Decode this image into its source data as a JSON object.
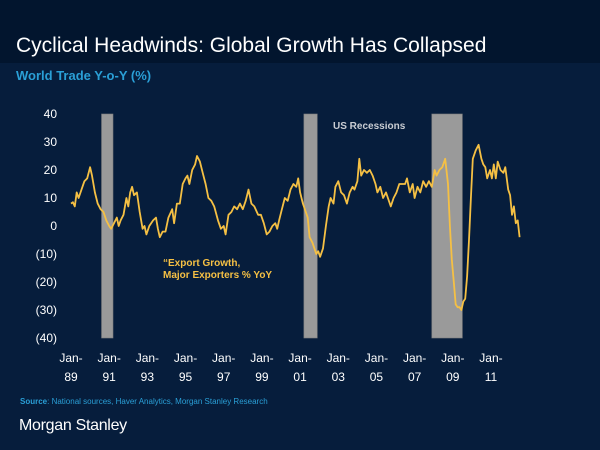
{
  "header": {
    "title": "Cyclical Headwinds: Global Growth Has Collapsed",
    "subtitle": "World Trade Y-o-Y (%)"
  },
  "footer": {
    "source_label": "Source",
    "source_text": ": National sources, Haver Analytics, Morgan Stanley Research",
    "logo": "Morgan Stanley"
  },
  "colors": {
    "background": "#061d3c",
    "header_band": "#02152e",
    "accent_blue": "#2a9fd6",
    "series_line": "#f5c044",
    "recession_bar": "#9a9a9a"
  },
  "chart_data": {
    "type": "line",
    "title": "World Trade Y-o-Y (%)",
    "xlabel": "",
    "ylabel": "",
    "xlim": [
      1988.6,
      2012.5
    ],
    "ylim": [
      -40,
      40
    ],
    "grid": false,
    "y_ticks": [
      40,
      30,
      20,
      10,
      0,
      -10,
      -20,
      -30,
      -40
    ],
    "y_tick_labels": [
      "40",
      "30",
      "20",
      "10",
      "0",
      "(10)",
      "(20)",
      "(30)",
      "(40)"
    ],
    "x_ticks": [
      1989,
      1991,
      1993,
      1995,
      1997,
      1999,
      2001,
      2003,
      2005,
      2007,
      2009,
      2011
    ],
    "x_tick_labels": [
      [
        "Jan-",
        "89"
      ],
      [
        "Jan-",
        "91"
      ],
      [
        "Jan-",
        "93"
      ],
      [
        "Jan-",
        "95"
      ],
      [
        "Jan-",
        "97"
      ],
      [
        "Jan-",
        "99"
      ],
      [
        "Jan-",
        "01"
      ],
      [
        "Jan-",
        "03"
      ],
      [
        "Jan-",
        "05"
      ],
      [
        "Jan-",
        "07"
      ],
      [
        "Jan-",
        "09"
      ],
      [
        "Jan-",
        "11"
      ]
    ],
    "annotations": {
      "recessions_label": "US Recessions",
      "series_label_line1": "“Export Growth,",
      "series_label_line2": "Major Exporters % YoY"
    },
    "recessions": [
      {
        "start": 1990.6,
        "end": 1991.2
      },
      {
        "start": 2001.2,
        "end": 2001.9
      },
      {
        "start": 2007.9,
        "end": 2009.5
      }
    ],
    "series": [
      {
        "name": "Export Growth, Major Exporters % YoY",
        "points": [
          [
            1989.0,
            8
          ],
          [
            1989.1,
            8.5
          ],
          [
            1989.2,
            7
          ],
          [
            1989.3,
            12
          ],
          [
            1989.4,
            10
          ],
          [
            1989.55,
            13
          ],
          [
            1989.7,
            16
          ],
          [
            1989.85,
            17
          ],
          [
            1990.0,
            21
          ],
          [
            1990.1,
            18
          ],
          [
            1990.25,
            12
          ],
          [
            1990.4,
            8
          ],
          [
            1990.55,
            6
          ],
          [
            1990.7,
            5
          ],
          [
            1990.85,
            2
          ],
          [
            1991.0,
            0
          ],
          [
            1991.1,
            -1
          ],
          [
            1991.25,
            1
          ],
          [
            1991.4,
            3
          ],
          [
            1991.5,
            0
          ],
          [
            1991.6,
            2
          ],
          [
            1991.75,
            4
          ],
          [
            1991.9,
            10
          ],
          [
            1992.0,
            7
          ],
          [
            1992.1,
            12
          ],
          [
            1992.2,
            14
          ],
          [
            1992.3,
            11
          ],
          [
            1992.45,
            12
          ],
          [
            1992.6,
            5
          ],
          [
            1992.75,
            -1
          ],
          [
            1992.85,
            0
          ],
          [
            1992.95,
            -3
          ],
          [
            1993.1,
            0
          ],
          [
            1993.3,
            2
          ],
          [
            1993.45,
            3
          ],
          [
            1993.55,
            -1
          ],
          [
            1993.65,
            -4
          ],
          [
            1993.8,
            -2
          ],
          [
            1993.95,
            -2
          ],
          [
            1994.1,
            3
          ],
          [
            1994.3,
            6
          ],
          [
            1994.4,
            1
          ],
          [
            1994.55,
            8
          ],
          [
            1994.7,
            8
          ],
          [
            1994.85,
            15
          ],
          [
            1995.0,
            17
          ],
          [
            1995.1,
            18
          ],
          [
            1995.2,
            15
          ],
          [
            1995.35,
            20
          ],
          [
            1995.5,
            22
          ],
          [
            1995.6,
            25
          ],
          [
            1995.75,
            23
          ],
          [
            1995.9,
            19
          ],
          [
            1996.05,
            15
          ],
          [
            1996.2,
            10
          ],
          [
            1996.35,
            9
          ],
          [
            1996.5,
            7
          ],
          [
            1996.7,
            2
          ],
          [
            1996.85,
            -1
          ],
          [
            1997.0,
            0
          ],
          [
            1997.1,
            -3
          ],
          [
            1997.25,
            4
          ],
          [
            1997.4,
            5
          ],
          [
            1997.55,
            7
          ],
          [
            1997.7,
            6
          ],
          [
            1997.85,
            8
          ],
          [
            1998.0,
            6
          ],
          [
            1998.15,
            9
          ],
          [
            1998.3,
            13
          ],
          [
            1998.45,
            8
          ],
          [
            1998.6,
            7
          ],
          [
            1998.8,
            4
          ],
          [
            1998.95,
            4
          ],
          [
            1999.1,
            1
          ],
          [
            1999.25,
            -3
          ],
          [
            1999.4,
            -2
          ],
          [
            1999.55,
            0
          ],
          [
            1999.7,
            1
          ],
          [
            1999.8,
            -1
          ],
          [
            1999.9,
            2
          ],
          [
            2000.05,
            6
          ],
          [
            2000.2,
            10
          ],
          [
            2000.35,
            9
          ],
          [
            2000.5,
            13
          ],
          [
            2000.65,
            15
          ],
          [
            2000.8,
            14
          ],
          [
            2000.9,
            17
          ],
          [
            2001.0,
            12
          ],
          [
            2001.15,
            8
          ],
          [
            2001.3,
            5
          ],
          [
            2001.4,
            3
          ],
          [
            2001.5,
            -4
          ],
          [
            2001.65,
            -6
          ],
          [
            2001.75,
            -8
          ],
          [
            2001.85,
            -10
          ],
          [
            2001.95,
            -9
          ],
          [
            2002.05,
            -11
          ],
          [
            2002.2,
            -8
          ],
          [
            2002.35,
            0
          ],
          [
            2002.5,
            7
          ],
          [
            2002.6,
            10
          ],
          [
            2002.75,
            8
          ],
          [
            2002.85,
            14
          ],
          [
            2003.0,
            16
          ],
          [
            2003.15,
            12
          ],
          [
            2003.3,
            11
          ],
          [
            2003.45,
            8
          ],
          [
            2003.6,
            12
          ],
          [
            2003.75,
            14
          ],
          [
            2003.85,
            13
          ],
          [
            2004.0,
            16
          ],
          [
            2004.1,
            24
          ],
          [
            2004.2,
            18
          ],
          [
            2004.35,
            20
          ],
          [
            2004.5,
            19
          ],
          [
            2004.65,
            20
          ],
          [
            2004.8,
            18
          ],
          [
            2004.95,
            15
          ],
          [
            2005.05,
            12
          ],
          [
            2005.2,
            14
          ],
          [
            2005.35,
            10
          ],
          [
            2005.5,
            12
          ],
          [
            2005.6,
            10
          ],
          [
            2005.75,
            7
          ],
          [
            2005.9,
            10
          ],
          [
            2006.05,
            12
          ],
          [
            2006.2,
            15
          ],
          [
            2006.35,
            15
          ],
          [
            2006.5,
            15
          ],
          [
            2006.6,
            17
          ],
          [
            2006.75,
            12
          ],
          [
            2006.9,
            15
          ],
          [
            2007.0,
            10
          ],
          [
            2007.15,
            14
          ],
          [
            2007.3,
            12
          ],
          [
            2007.45,
            16
          ],
          [
            2007.6,
            14
          ],
          [
            2007.75,
            16
          ],
          [
            2007.9,
            14
          ],
          [
            2008.05,
            20
          ],
          [
            2008.15,
            18
          ],
          [
            2008.3,
            20
          ],
          [
            2008.45,
            21
          ],
          [
            2008.6,
            24
          ],
          [
            2008.75,
            15
          ],
          [
            2008.85,
            0
          ],
          [
            2008.95,
            -12
          ],
          [
            2009.05,
            -20
          ],
          [
            2009.15,
            -28
          ],
          [
            2009.25,
            -29
          ],
          [
            2009.35,
            -29
          ],
          [
            2009.45,
            -30
          ],
          [
            2009.55,
            -27
          ],
          [
            2009.65,
            -26
          ],
          [
            2009.75,
            -18
          ],
          [
            2009.85,
            -5
          ],
          [
            2009.95,
            10
          ],
          [
            2010.05,
            24
          ],
          [
            2010.2,
            27
          ],
          [
            2010.35,
            29
          ],
          [
            2010.5,
            24
          ],
          [
            2010.6,
            22
          ],
          [
            2010.7,
            21
          ],
          [
            2010.8,
            17
          ],
          [
            2010.95,
            20
          ],
          [
            2011.05,
            17
          ],
          [
            2011.15,
            22
          ],
          [
            2011.25,
            17
          ],
          [
            2011.35,
            23
          ],
          [
            2011.5,
            20
          ],
          [
            2011.65,
            19
          ],
          [
            2011.75,
            21
          ],
          [
            2011.9,
            13
          ],
          [
            2012.0,
            11
          ],
          [
            2012.1,
            4
          ],
          [
            2012.2,
            7
          ],
          [
            2012.3,
            1
          ],
          [
            2012.4,
            2
          ],
          [
            2012.5,
            -4
          ]
        ]
      }
    ]
  }
}
